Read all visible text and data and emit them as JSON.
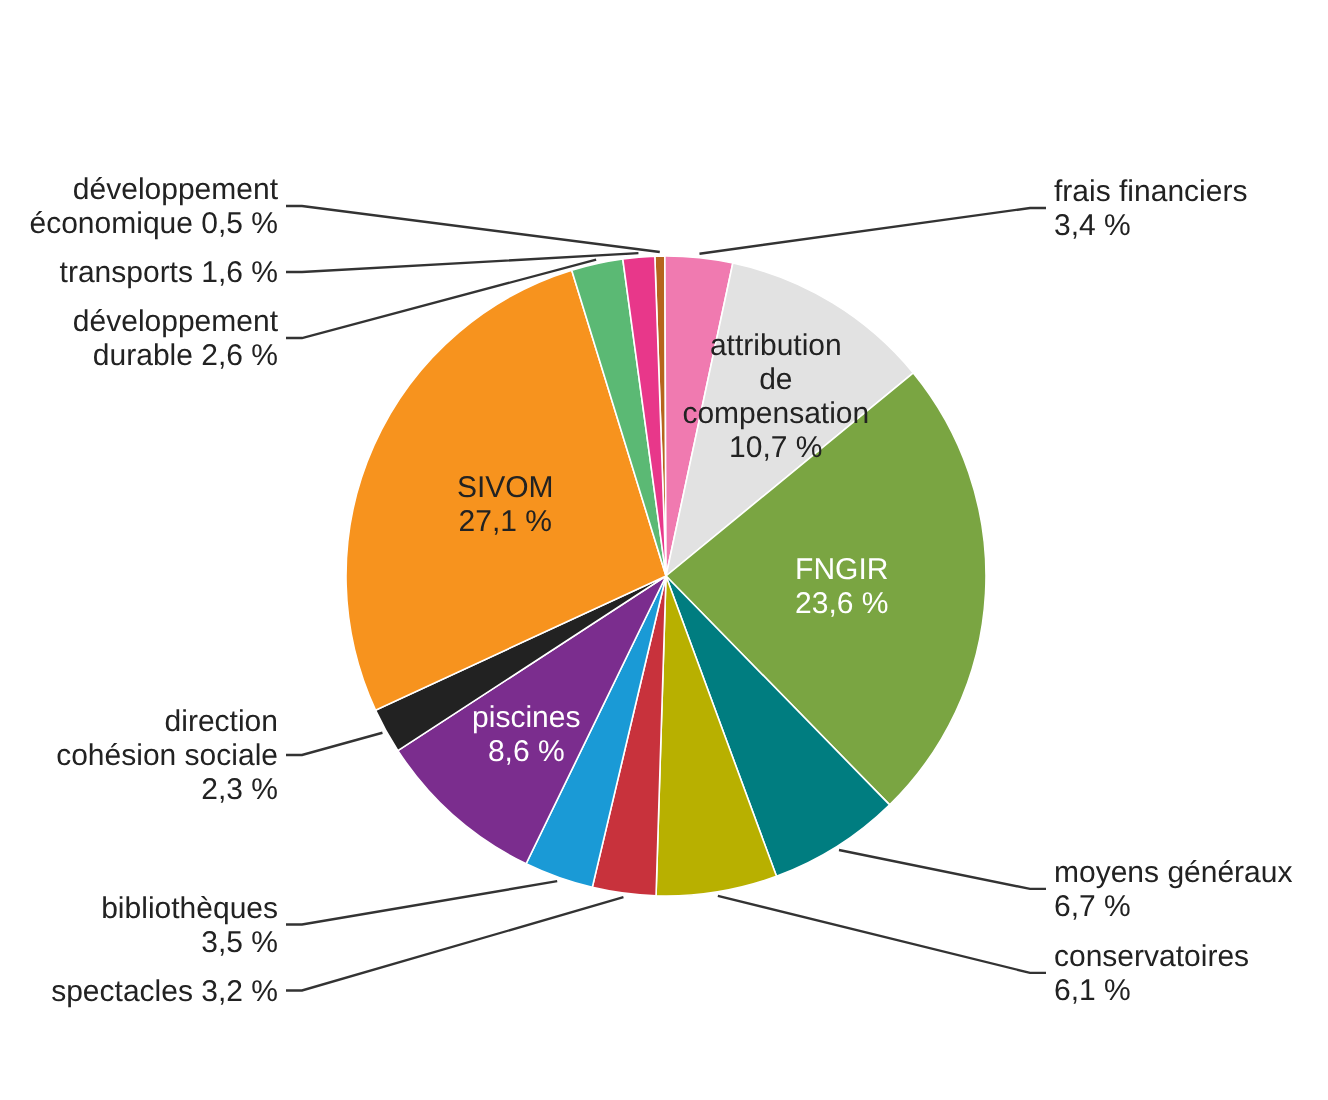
{
  "chart_data": {
    "type": "pie",
    "categories": [
      "développement économique",
      "frais financiers",
      "attribution de compensation",
      "FNGIR",
      "moyens généraux",
      "conservatoires",
      "spectacles",
      "bibliothèques",
      "piscines",
      "direction cohésion sociale",
      "SIVOM",
      "développement durable",
      "transports"
    ],
    "values": [
      0.5,
      3.4,
      10.7,
      23.6,
      6.7,
      6.1,
      3.2,
      3.5,
      8.6,
      2.3,
      27.1,
      2.6,
      1.6
    ],
    "value_labels": [
      "0,5 %",
      "3,4 %",
      "10,7 %",
      "23,6 %",
      "6,7 %",
      "6,1 %",
      "3,2 %",
      "3,5 %",
      "8,6 %",
      "2,3 %",
      "27,1 %",
      "2,6 %",
      "1,6 %"
    ],
    "colors": [
      "#b5651d",
      "#f07ab0",
      "#e2e2e2",
      "#7aa542",
      "#007d80",
      "#b8b000",
      "#c8323c",
      "#1a9ad6",
      "#7b2d8e",
      "#222222",
      "#f7931e",
      "#5bb974",
      "#e8378a"
    ]
  }
}
